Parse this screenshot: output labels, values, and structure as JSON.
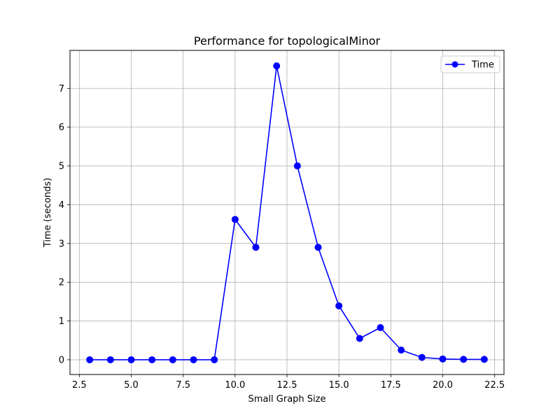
{
  "chart_data": {
    "type": "line",
    "title": "Performance for topologicalMinor",
    "xlabel": "Small Graph Size",
    "ylabel": "Time (seconds)",
    "xlim": [
      2.05,
      22.95
    ],
    "ylim": [
      -0.38,
      7.98
    ],
    "xticks": [
      2.5,
      5.0,
      7.5,
      10.0,
      12.5,
      15.0,
      17.5,
      20.0,
      22.5
    ],
    "xtick_labels": [
      "2.5",
      "5.0",
      "7.5",
      "10.0",
      "12.5",
      "15.0",
      "17.5",
      "20.0",
      "22.5"
    ],
    "yticks": [
      0,
      1,
      2,
      3,
      4,
      5,
      6,
      7
    ],
    "ytick_labels": [
      "0",
      "1",
      "2",
      "3",
      "4",
      "5",
      "6",
      "7"
    ],
    "grid": true,
    "legend_position": "top-right",
    "series": [
      {
        "name": "Time",
        "color": "#0000ff",
        "marker": "circle",
        "x": [
          3,
          4,
          5,
          6,
          7,
          8,
          9,
          10,
          11,
          12,
          13,
          14,
          15,
          16,
          17,
          18,
          19,
          20,
          21,
          22
        ],
        "y": [
          0.0,
          0.0,
          0.0,
          0.0,
          0.0,
          0.0,
          0.0,
          3.62,
          2.9,
          7.58,
          5.0,
          2.9,
          1.39,
          0.55,
          0.83,
          0.25,
          0.06,
          0.02,
          0.01,
          0.01
        ]
      }
    ]
  }
}
